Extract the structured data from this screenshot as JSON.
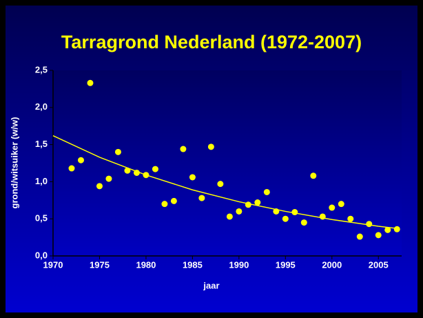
{
  "chart_data": {
    "type": "scatter",
    "title": "Tarragrond Nederland (1972-2007)",
    "x_label": "jaar",
    "y_label": "grond/witsuiker (w/w)",
    "xlim": [
      1970,
      2007.5
    ],
    "xticks": [
      1970,
      1975,
      1980,
      1985,
      1990,
      1995,
      2000,
      2005
    ],
    "ylim": [
      0,
      2.5
    ],
    "yticks": [
      {
        "value": 0,
        "label": "0,0"
      },
      {
        "value": 0.5,
        "label": "0,5"
      },
      {
        "value": 1,
        "label": "1,0"
      },
      {
        "value": 1.5,
        "label": "1,5"
      },
      {
        "value": 2,
        "label": "2,0"
      },
      {
        "value": 2.5,
        "label": "2,5"
      }
    ],
    "series": [
      {
        "color": "#ffff00",
        "x": [
          1972,
          1973,
          1974,
          1975,
          1976,
          1977,
          1978,
          1979,
          1980,
          1981,
          1982,
          1983,
          1984,
          1985,
          1986,
          1987,
          1988,
          1989,
          1990,
          1991,
          1992,
          1993,
          1994,
          1995,
          1996,
          1997,
          1998,
          1999,
          2000,
          2001,
          2002,
          2003,
          2004,
          2005,
          2006,
          2007
        ],
        "values": [
          1.18,
          1.29,
          2.33,
          0.94,
          1.04,
          1.4,
          1.15,
          1.12,
          1.09,
          1.17,
          0.7,
          0.74,
          1.44,
          1.06,
          0.78,
          1.47,
          0.97,
          0.53,
          0.6,
          0.69,
          0.72,
          0.86,
          0.6,
          0.5,
          0.59,
          0.45,
          1.08,
          0.53,
          0.65,
          0.7,
          0.5,
          0.26,
          0.43,
          0.28,
          0.35,
          0.36
        ]
      },
      {
        "color": "#ffff00",
        "x": [
          1970,
          1975,
          1980,
          1985,
          1990,
          1995,
          2000,
          2005,
          2007
        ],
        "values": [
          1.62,
          1.33,
          1.09,
          0.89,
          0.73,
          0.6,
          0.49,
          0.4,
          0.37
        ]
      }
    ]
  }
}
